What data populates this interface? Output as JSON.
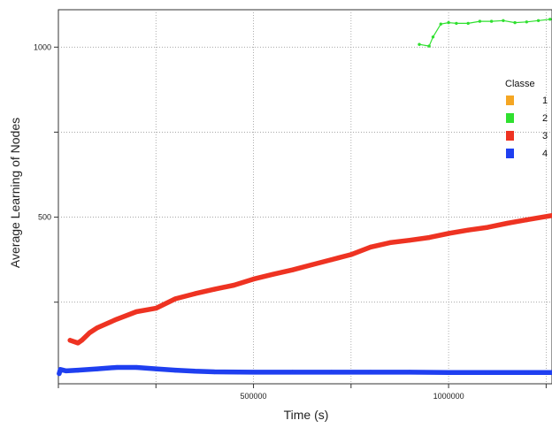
{
  "chart_data": {
    "type": "scatter",
    "xlabel": "Time (s)",
    "ylabel": "Average Learning of Nodes",
    "xlim": [
      0,
      1265000
    ],
    "ylim": [
      10,
      1110
    ],
    "x_ticks": [
      0,
      250000,
      500000,
      750000,
      1000000,
      1250000
    ],
    "x_tick_labels": [
      "",
      "",
      "500000",
      "",
      "1000000",
      ""
    ],
    "y_ticks": [
      250,
      500,
      750,
      1000
    ],
    "y_tick_labels": [
      "",
      "500",
      "",
      "1000"
    ],
    "grid": true,
    "legend": {
      "title": "Classe",
      "placement": "right",
      "entries": [
        {
          "label": "1",
          "color": "#f5a623"
        },
        {
          "label": "2",
          "color": "#2fe02f"
        },
        {
          "label": "3",
          "color": "#ee3322"
        },
        {
          "label": "4",
          "color": "#1f3ff0"
        }
      ]
    },
    "series": [
      {
        "name": "2",
        "color": "#2fe02f",
        "points": [
          [
            925000,
            1008
          ],
          [
            950000,
            1003
          ],
          [
            960000,
            1030
          ],
          [
            980000,
            1068
          ],
          [
            1000000,
            1072
          ],
          [
            1020000,
            1070
          ],
          [
            1050000,
            1070
          ],
          [
            1080000,
            1076
          ],
          [
            1110000,
            1076
          ],
          [
            1140000,
            1078
          ],
          [
            1170000,
            1072
          ],
          [
            1200000,
            1074
          ],
          [
            1230000,
            1078
          ],
          [
            1260000,
            1082
          ]
        ]
      },
      {
        "name": "3",
        "color": "#ee3322",
        "points": [
          [
            30000,
            138
          ],
          [
            50000,
            130
          ],
          [
            60000,
            138
          ],
          [
            80000,
            160
          ],
          [
            100000,
            175
          ],
          [
            150000,
            200
          ],
          [
            200000,
            222
          ],
          [
            250000,
            232
          ],
          [
            300000,
            260
          ],
          [
            350000,
            275
          ],
          [
            400000,
            288
          ],
          [
            450000,
            300
          ],
          [
            500000,
            318
          ],
          [
            550000,
            332
          ],
          [
            600000,
            345
          ],
          [
            650000,
            360
          ],
          [
            700000,
            375
          ],
          [
            750000,
            390
          ],
          [
            800000,
            412
          ],
          [
            850000,
            425
          ],
          [
            900000,
            432
          ],
          [
            950000,
            440
          ],
          [
            1000000,
            452
          ],
          [
            1050000,
            462
          ],
          [
            1100000,
            470
          ],
          [
            1150000,
            482
          ],
          [
            1200000,
            492
          ],
          [
            1265000,
            505
          ]
        ]
      },
      {
        "name": "4",
        "color": "#1f3ff0",
        "points": [
          [
            2000,
            40
          ],
          [
            5000,
            52
          ],
          [
            20000,
            48
          ],
          [
            50000,
            50
          ],
          [
            100000,
            54
          ],
          [
            150000,
            58
          ],
          [
            200000,
            58
          ],
          [
            250000,
            54
          ],
          [
            300000,
            50
          ],
          [
            350000,
            47
          ],
          [
            400000,
            45
          ],
          [
            500000,
            44
          ],
          [
            600000,
            44
          ],
          [
            700000,
            44
          ],
          [
            800000,
            44
          ],
          [
            900000,
            44
          ],
          [
            1000000,
            43
          ],
          [
            1100000,
            43
          ],
          [
            1200000,
            43
          ],
          [
            1265000,
            43
          ]
        ]
      }
    ]
  }
}
